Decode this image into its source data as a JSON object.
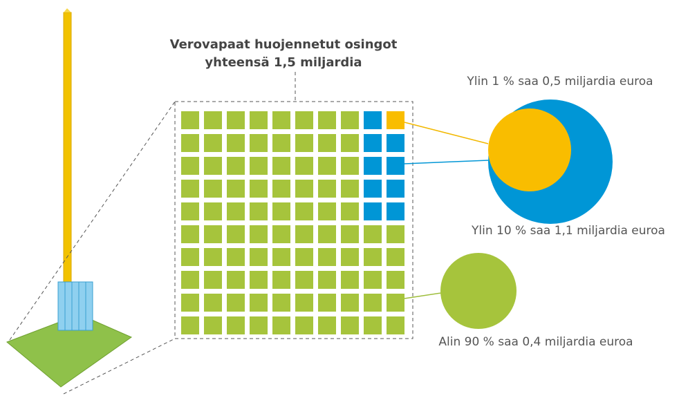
{
  "title": {
    "line1": "Verovapaat huojennetut osingot",
    "line2": "yhteensä 1,5 miljardia"
  },
  "groups": [
    {
      "label": "Ylin 1 % saa 0,5 miljardia euroa"
    },
    {
      "label": "Ylin 10 % saa 1,1 miljardia euroa"
    },
    {
      "label": "Alin 90 % saa 0,4 miljardia euroa"
    }
  ]
}
